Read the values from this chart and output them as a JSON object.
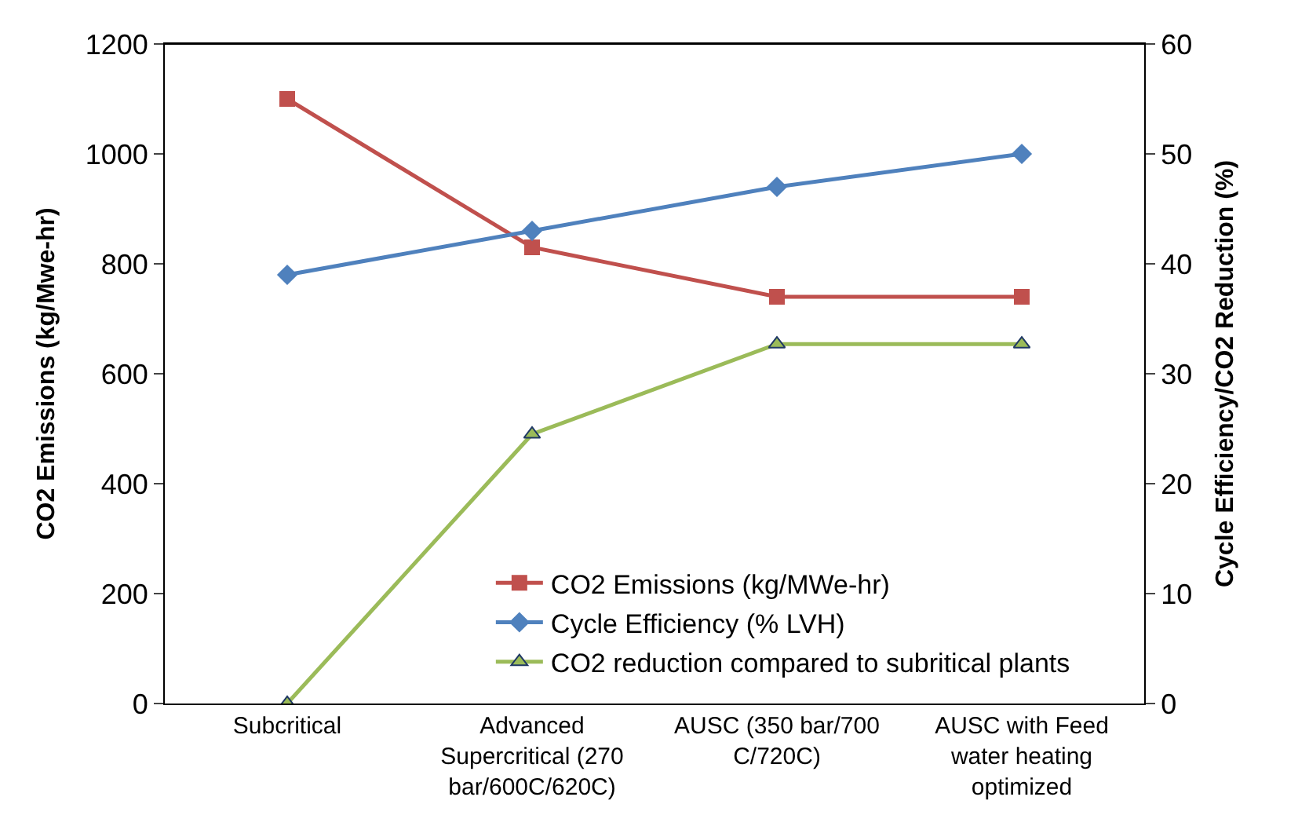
{
  "chart_data": {
    "type": "line",
    "ylabel": "CO2 Emissions (kg/Mwe-hr)",
    "y2label": "Cycle Efficiency/CO2 Reduction (%)",
    "categories": [
      "Subcritical",
      "Advanced Supercritical (270 bar/600C/620C)",
      "AUSC (350 bar/700 C/720C)",
      "AUSC with Feed water heating optimized"
    ],
    "series": [
      {
        "name": "CO2 Emissions (kg/MWe-hr)",
        "color": "#c0504d",
        "marker": "square",
        "values": [
          1100,
          830,
          740,
          740
        ]
      },
      {
        "name": "Cycle Efficiency (% LVH)",
        "color": "#4f81bd",
        "marker": "diamond",
        "axis": "y2",
        "values": [
          39,
          43,
          47,
          50
        ]
      },
      {
        "name": "CO2 reduction compared to subritical plants",
        "color": "#9bbb59",
        "marker": "triangle",
        "axis": "y2",
        "values": [
          0,
          24.5,
          32.7,
          32.7
        ]
      }
    ],
    "ylim": [
      0,
      1200
    ],
    "yticks": [
      0,
      200,
      400,
      600,
      800,
      1000,
      1200
    ],
    "y2lim": [
      0,
      60
    ],
    "y2ticks": [
      0,
      10,
      20,
      30,
      40,
      50,
      60
    ],
    "grid": false,
    "legend": "bottom",
    "line_style": "solid"
  }
}
